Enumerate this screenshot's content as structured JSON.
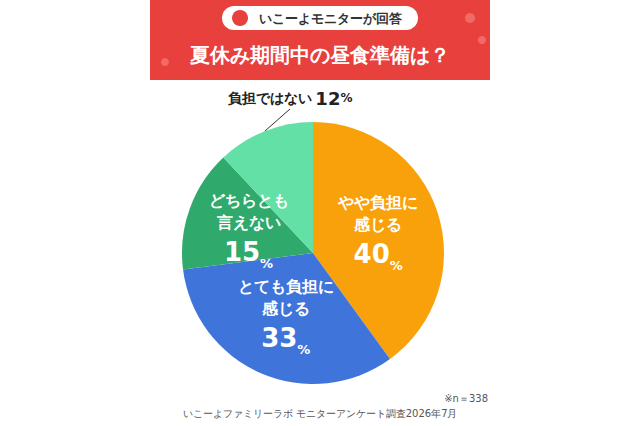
{
  "chart_data": {
    "type": "pie",
    "subtitle": "いこーよモニターが回答",
    "title": "夏休み期間中の昼食準備は？",
    "categories": [
      "やや負担に感じる",
      "とても負担に感じる",
      "どちらとも言えない",
      "負担ではない"
    ],
    "values": [
      40,
      33,
      15,
      12
    ],
    "value_labels": [
      "40%",
      "33%",
      "15%",
      "12%"
    ],
    "colors": [
      "#F9A10B",
      "#3F74DA",
      "#2FAA6C",
      "#62E0A6"
    ],
    "data_labels": true,
    "annotations": [
      "※n＝338",
      "いこーよファミリーラボ モニターアンケート調査2026年7月"
    ]
  }
}
